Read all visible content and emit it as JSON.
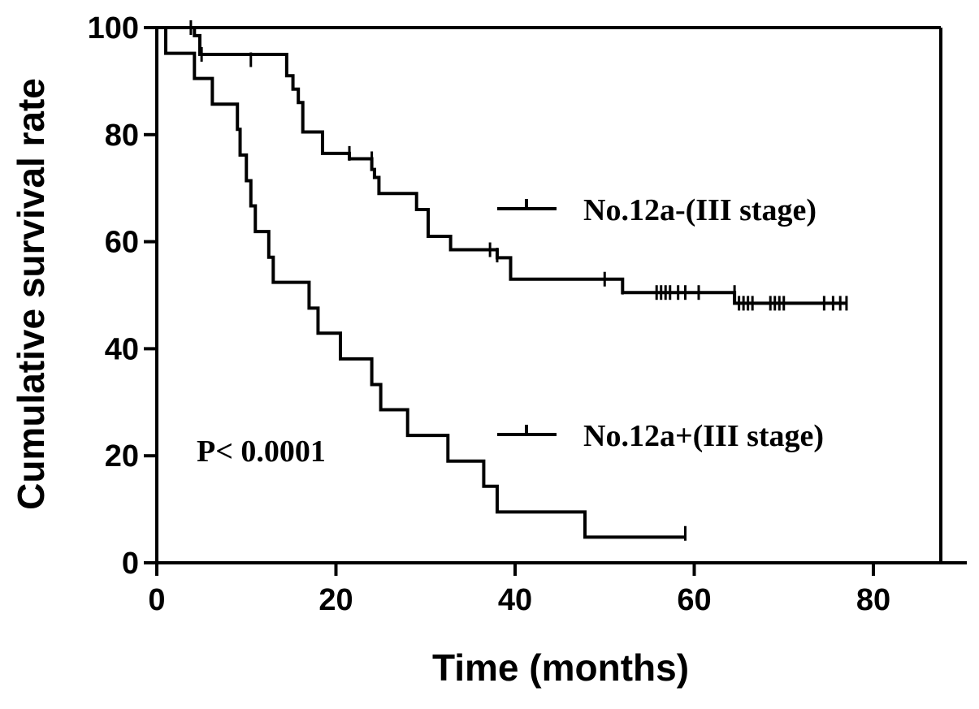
{
  "chart_data": {
    "type": "line",
    "subtype": "kaplan-meier step",
    "xlabel": "Time (months)",
    "ylabel": "Cumulative survival rate",
    "xlim": [
      0,
      88
    ],
    "ylim": [
      0,
      100
    ],
    "x_ticks": [
      0,
      20,
      40,
      60,
      80
    ],
    "y_ticks": [
      0,
      20,
      40,
      60,
      80,
      100
    ],
    "grid": false,
    "legend_position": "right, inline with curves",
    "annotation": "P< 0.0001",
    "series": [
      {
        "name": "No.12a-(III stage)",
        "color": "#000000",
        "steps": [
          [
            0,
            100
          ],
          [
            4.2,
            98.5
          ],
          [
            4.8,
            95
          ],
          [
            14.5,
            91
          ],
          [
            15.2,
            88.5
          ],
          [
            15.8,
            86
          ],
          [
            16.3,
            80.5
          ],
          [
            18.5,
            76.5
          ],
          [
            21.5,
            75.5
          ],
          [
            24.0,
            73.5
          ],
          [
            24.3,
            72
          ],
          [
            24.8,
            69
          ],
          [
            29.0,
            66
          ],
          [
            30.3,
            61
          ],
          [
            32.8,
            58.5
          ],
          [
            38.0,
            57
          ],
          [
            39.5,
            53
          ],
          [
            52.0,
            50.5
          ],
          [
            64.5,
            48.5
          ]
        ],
        "end_x": 77,
        "censored": [
          [
            3.8,
            100
          ],
          [
            5.0,
            95
          ],
          [
            10.5,
            94
          ],
          [
            21.5,
            76.5
          ],
          [
            24.0,
            75.5
          ],
          [
            37.2,
            58.5
          ],
          [
            38.0,
            57.5
          ],
          [
            50.0,
            53
          ],
          [
            52.0,
            51.5
          ],
          [
            55.8,
            50.5
          ],
          [
            56.3,
            50.5
          ],
          [
            56.8,
            50.5
          ],
          [
            57.3,
            50.5
          ],
          [
            58.2,
            50.5
          ],
          [
            59.0,
            50.5
          ],
          [
            60.5,
            50.5
          ],
          [
            64.5,
            50.5
          ],
          [
            65.0,
            48.5
          ],
          [
            65.5,
            48.5
          ],
          [
            66.0,
            48.5
          ],
          [
            66.5,
            48.5
          ],
          [
            68.5,
            48.5
          ],
          [
            69.0,
            48.5
          ],
          [
            69.5,
            48.5
          ],
          [
            70.0,
            48.5
          ],
          [
            74.5,
            48.5
          ],
          [
            75.5,
            48.5
          ],
          [
            76.3,
            48.5
          ],
          [
            77.0,
            48.5
          ]
        ]
      },
      {
        "name": "No.12a+(III stage)",
        "color": "#000000",
        "steps": [
          [
            0,
            100
          ],
          [
            1.0,
            95.2
          ],
          [
            4.2,
            90.5
          ],
          [
            6.2,
            85.7
          ],
          [
            9.0,
            81
          ],
          [
            9.3,
            76.2
          ],
          [
            10.0,
            71.4
          ],
          [
            10.5,
            66.7
          ],
          [
            11.0,
            61.9
          ],
          [
            12.5,
            57.1
          ],
          [
            13.0,
            52.4
          ],
          [
            17.0,
            47.6
          ],
          [
            18.0,
            42.9
          ],
          [
            20.5,
            38.1
          ],
          [
            24.0,
            33.3
          ],
          [
            25.0,
            28.6
          ],
          [
            28.0,
            23.8
          ],
          [
            32.5,
            19
          ],
          [
            36.5,
            14.3
          ],
          [
            38.0,
            9.5
          ],
          [
            47.8,
            4.8
          ]
        ],
        "end_x": 59,
        "censored": [
          [
            59.0,
            5.5
          ]
        ]
      }
    ]
  }
}
